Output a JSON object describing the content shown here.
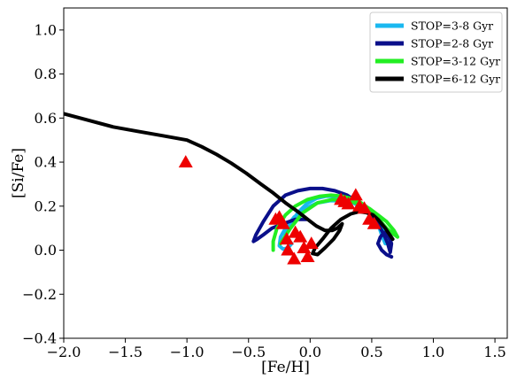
{
  "chart_data": {
    "type": "line",
    "title": "",
    "xlabel": "[Fe/H]",
    "ylabel": "[Si/Fe]",
    "xlim": [
      -2.0,
      1.6
    ],
    "ylim": [
      -0.4,
      1.1
    ],
    "x_ticks": [
      "−2.0",
      "−1.5",
      "−1.0",
      "−0.5",
      "0.0",
      "0.5",
      "1.0",
      "1.5"
    ],
    "x_tick_values": [
      -2.0,
      -1.5,
      -1.0,
      -0.5,
      0.0,
      0.5,
      1.0,
      1.5
    ],
    "y_ticks": [
      "−0.4",
      "−0.2",
      "0.0",
      "0.2",
      "0.4",
      "0.6",
      "0.8",
      "1.0"
    ],
    "y_tick_values": [
      -0.4,
      -0.2,
      0.0,
      0.2,
      0.4,
      0.6,
      0.8,
      1.0
    ],
    "grid": false,
    "legend_position": "top-right",
    "series": [
      {
        "name": "STOP=3-8 Gyr",
        "color": "#1ab8f0",
        "x": [
          -0.2,
          -0.16,
          -0.1,
          -0.03,
          0.05,
          0.13,
          0.21,
          0.29,
          0.36,
          0.43,
          0.49,
          0.54,
          0.57,
          0.6,
          0.62,
          0.61,
          0.58,
          0.55,
          0.5,
          0.43,
          0.35,
          0.26,
          0.16,
          0.06,
          -0.04,
          -0.13,
          -0.2,
          -0.24,
          -0.25,
          -0.22,
          -0.18,
          -0.15
        ],
        "y": [
          0.07,
          0.12,
          0.17,
          0.21,
          0.235,
          0.245,
          0.245,
          0.235,
          0.22,
          0.2,
          0.17,
          0.14,
          0.11,
          0.08,
          0.05,
          0.03,
          0.07,
          0.12,
          0.16,
          0.19,
          0.215,
          0.225,
          0.225,
          0.215,
          0.19,
          0.15,
          0.1,
          0.06,
          0.02,
          0.005,
          0.01,
          0.03
        ]
      },
      {
        "name": "STOP=2-8 Gyr",
        "color": "#0a0f8a",
        "x": [
          -0.03,
          -0.12,
          -0.22,
          -0.31,
          -0.38,
          -0.43,
          -0.46,
          -0.44,
          -0.38,
          -0.3,
          -0.2,
          -0.1,
          0.0,
          0.1,
          0.2,
          0.3,
          0.38,
          0.45,
          0.51,
          0.56,
          0.6,
          0.63,
          0.65,
          0.66,
          0.64,
          0.6,
          0.57,
          0.55,
          0.58,
          0.62,
          0.66
        ],
        "y": [
          0.14,
          0.14,
          0.12,
          0.1,
          0.07,
          0.05,
          0.04,
          0.07,
          0.13,
          0.2,
          0.25,
          0.27,
          0.28,
          0.28,
          0.27,
          0.25,
          0.22,
          0.19,
          0.15,
          0.11,
          0.07,
          0.03,
          -0.01,
          0.03,
          0.06,
          0.08,
          0.06,
          0.03,
          0.0,
          -0.02,
          -0.03
        ]
      },
      {
        "name": "STOP=3-12 Gyr",
        "color": "#22ee22",
        "x": [
          -0.3,
          -0.3,
          -0.27,
          -0.2,
          -0.12,
          -0.02,
          0.08,
          0.17,
          0.26,
          0.33,
          0.4,
          0.45,
          0.49,
          0.52,
          0.55,
          0.58,
          0.62,
          0.66,
          0.71,
          0.68,
          0.62,
          0.55,
          0.48,
          0.4,
          0.3,
          0.18,
          0.06,
          -0.06,
          -0.16,
          -0.24
        ],
        "y": [
          0.0,
          0.04,
          0.1,
          0.16,
          0.2,
          0.23,
          0.245,
          0.25,
          0.245,
          0.235,
          0.22,
          0.2,
          0.185,
          0.17,
          0.15,
          0.125,
          0.1,
          0.08,
          0.06,
          0.09,
          0.13,
          0.16,
          0.19,
          0.21,
          0.225,
          0.23,
          0.215,
          0.17,
          0.1,
          0.03
        ]
      },
      {
        "name": "STOP=6-12 Gyr",
        "color": "#000000",
        "x": [
          -2.0,
          -1.8,
          -1.6,
          -1.4,
          -1.2,
          -1.0,
          -0.88,
          -0.76,
          -0.64,
          -0.52,
          -0.4,
          -0.3,
          -0.2,
          -0.1,
          -0.02,
          0.05,
          0.12,
          0.18,
          0.22,
          0.26,
          0.24,
          0.19,
          0.12,
          0.06,
          0.02,
          0.04,
          0.1,
          0.17,
          0.25,
          0.33,
          0.4,
          0.46,
          0.51,
          0.55,
          0.58,
          0.61,
          0.64,
          0.67
        ],
        "y": [
          0.62,
          0.59,
          0.56,
          0.54,
          0.52,
          0.5,
          0.47,
          0.435,
          0.395,
          0.35,
          0.3,
          0.26,
          0.215,
          0.175,
          0.14,
          0.11,
          0.09,
          0.09,
          0.1,
          0.12,
          0.09,
          0.05,
          0.01,
          -0.02,
          -0.015,
          0.01,
          0.05,
          0.1,
          0.14,
          0.165,
          0.175,
          0.17,
          0.16,
          0.14,
          0.12,
          0.1,
          0.075,
          0.05
        ]
      }
    ],
    "observations": {
      "marker": "triangle",
      "color": "#ee0000",
      "x": [
        -1.01,
        -0.28,
        -0.25,
        -0.22,
        -0.19,
        -0.12,
        -0.08,
        -0.05,
        -0.13,
        -0.18,
        -0.02,
        0.01,
        0.25,
        0.28,
        0.31,
        0.37,
        0.4,
        0.44,
        0.48,
        0.52
      ],
      "y": [
        0.4,
        0.14,
        0.15,
        0.12,
        0.05,
        0.08,
        0.06,
        0.01,
        -0.04,
        0.0,
        -0.03,
        0.03,
        0.23,
        0.22,
        0.21,
        0.25,
        0.2,
        0.19,
        0.14,
        0.12
      ]
    }
  }
}
